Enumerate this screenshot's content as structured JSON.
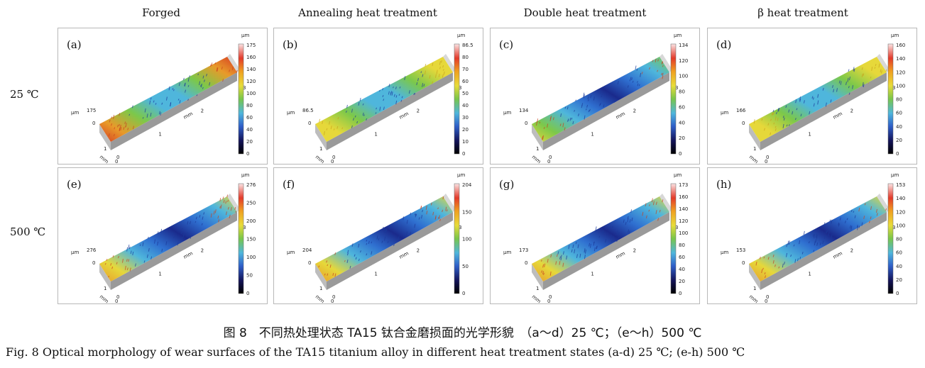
{
  "columns": [
    "Forged",
    "Annealing heat treatment",
    "Double heat treatment",
    "β heat treatment"
  ],
  "rows": [
    "25 ℃",
    "500 ℃"
  ],
  "panels": [
    {
      "label": "(a)",
      "unit": "μm",
      "max": "175",
      "ticks": [
        "175",
        "160",
        "140",
        "120",
        "100",
        "80",
        "60",
        "40",
        "20",
        "0"
      ],
      "zlabel": "175",
      "wear": "hot-edges"
    },
    {
      "label": "(b)",
      "unit": "μm",
      "max": "86.5",
      "ticks": [
        "86.5",
        "80",
        "70",
        "60",
        "50",
        "40",
        "30",
        "20",
        "10",
        "0"
      ],
      "zlabel": "86.5",
      "wear": "yellow"
    },
    {
      "label": "(c)",
      "unit": "μm",
      "max": "134",
      "ticks": [
        "134",
        "120",
        "100",
        "80",
        "60",
        "40",
        "20",
        "0"
      ],
      "zlabel": "134",
      "wear": "valley"
    },
    {
      "label": "(d)",
      "unit": "μm",
      "max": "166",
      "ticks": [
        "160",
        "140",
        "120",
        "100",
        "80",
        "60",
        "40",
        "20",
        "0"
      ],
      "zlabel": "166",
      "wear": "yellow"
    },
    {
      "label": "(e)",
      "unit": "μm",
      "max": "276",
      "ticks": [
        "276",
        "250",
        "200",
        "150",
        "100",
        "50",
        "0"
      ],
      "zlabel": "276",
      "wear": "deep"
    },
    {
      "label": "(f)",
      "unit": "μm",
      "max": "204",
      "ticks": [
        "204",
        "150",
        "100",
        "50",
        "0"
      ],
      "zlabel": "204",
      "wear": "deep"
    },
    {
      "label": "(g)",
      "unit": "μm",
      "max": "173",
      "ticks": [
        "173",
        "160",
        "140",
        "120",
        "100",
        "80",
        "60",
        "40",
        "20",
        "0"
      ],
      "zlabel": "173",
      "wear": "deep"
    },
    {
      "label": "(h)",
      "unit": "μm",
      "max": "153",
      "ticks": [
        "153",
        "140",
        "120",
        "100",
        "80",
        "60",
        "40",
        "20",
        "0"
      ],
      "zlabel": "153",
      "wear": "deep"
    }
  ],
  "axis": {
    "mm": "mm",
    "um": "μm",
    "x_ticks": [
      "0",
      "1",
      "2",
      "3"
    ],
    "y_ticks": [
      "0",
      "0.5",
      "1"
    ]
  },
  "caption_zh": "图 8　不同热处理状态 TA15 钛合金磨损面的光学形貌　（a～d）25 ℃；（e～h）500 ℃",
  "caption_en": "Fig. 8   Optical morphology of wear surfaces of the TA15 titanium alloy in different heat treatment states   (a-d) 25 ℃; (e-h) 500 ℃",
  "colors": {
    "deep": "#1a2a8c",
    "blue": "#2f6fd0",
    "cyan": "#4fb6dc",
    "green": "#7cc84a",
    "yellow": "#e6d83a",
    "orange": "#e89a2a",
    "red": "#d63a22"
  }
}
